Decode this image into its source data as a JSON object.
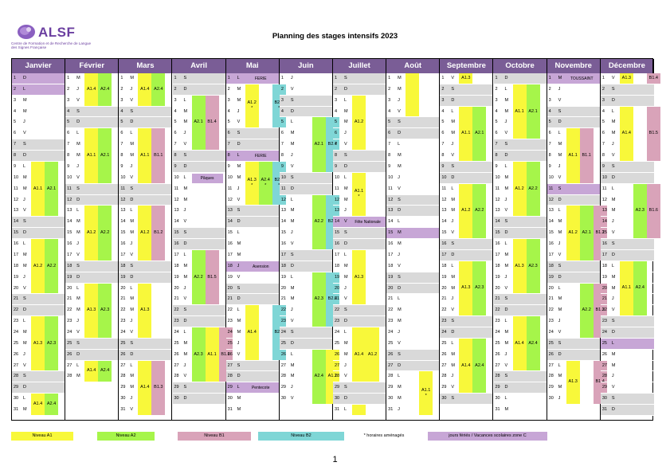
{
  "logo": {
    "brand": "ALSF",
    "subtitle": "Centre de Formation et de Recherche de Langue des Signes Française"
  },
  "title": "Planning des stages intensifs 2023",
  "months": [
    "Janvier",
    "Février",
    "Mars",
    "Avril",
    "Mai",
    "Juin",
    "Juillet",
    "Août",
    "Septembre",
    "Octobre",
    "Novembre",
    "Décembre"
  ],
  "days": [
    [
      "D",
      "L",
      "M",
      "M",
      "J",
      "V",
      "S",
      "D",
      "L",
      "M",
      "M",
      "J",
      "V",
      "S",
      "D",
      "L",
      "M",
      "M",
      "J",
      "V",
      "S",
      "D",
      "L",
      "M",
      "M",
      "J",
      "V",
      "S",
      "D",
      "L",
      "M"
    ],
    [
      "M",
      "J",
      "V",
      "S",
      "D",
      "L",
      "M",
      "M",
      "J",
      "V",
      "S",
      "D",
      "L",
      "M",
      "M",
      "J",
      "V",
      "S",
      "D",
      "L",
      "M",
      "M",
      "J",
      "V",
      "S",
      "D",
      "L",
      "M"
    ],
    [
      "M",
      "J",
      "V",
      "S",
      "D",
      "L",
      "M",
      "M",
      "J",
      "V",
      "S",
      "D",
      "L",
      "M",
      "M",
      "J",
      "V",
      "S",
      "D",
      "L",
      "M",
      "M",
      "J",
      "V",
      "S",
      "D",
      "L",
      "M",
      "M",
      "J",
      "V"
    ],
    [
      "S",
      "D",
      "L",
      "M",
      "M",
      "J",
      "V",
      "S",
      "D",
      "L",
      "M",
      "M",
      "J",
      "V",
      "S",
      "D",
      "L",
      "M",
      "M",
      "J",
      "V",
      "S",
      "D",
      "L",
      "M",
      "M",
      "J",
      "V",
      "S",
      "D"
    ],
    [
      "L",
      "M",
      "M",
      "J",
      "V",
      "S",
      "D",
      "L",
      "M",
      "M",
      "J",
      "V",
      "S",
      "D",
      "L",
      "M",
      "M",
      "J",
      "V",
      "S",
      "D",
      "L",
      "M",
      "M",
      "J",
      "V",
      "S",
      "D",
      "L",
      "M",
      "M"
    ],
    [
      "J",
      "V",
      "S",
      "D",
      "L",
      "M",
      "M",
      "J",
      "V",
      "S",
      "D",
      "L",
      "M",
      "M",
      "J",
      "V",
      "S",
      "D",
      "L",
      "M",
      "M",
      "J",
      "V",
      "S",
      "D",
      "L",
      "M",
      "M",
      "J",
      "V"
    ],
    [
      "S",
      "D",
      "L",
      "M",
      "M",
      "J",
      "V",
      "S",
      "D",
      "L",
      "M",
      "M",
      "J",
      "V",
      "S",
      "D",
      "L",
      "M",
      "M",
      "J",
      "V",
      "S",
      "D",
      "L",
      "M",
      "M",
      "J",
      "V",
      "S",
      "D",
      "L"
    ],
    [
      "M",
      "M",
      "J",
      "V",
      "S",
      "D",
      "L",
      "M",
      "M",
      "J",
      "V",
      "S",
      "D",
      "L",
      "M",
      "M",
      "J",
      "V",
      "S",
      "D",
      "L",
      "M",
      "M",
      "J",
      "V",
      "S",
      "D",
      "L",
      "M",
      "M",
      "J"
    ],
    [
      "V",
      "S",
      "D",
      "L",
      "M",
      "M",
      "J",
      "V",
      "S",
      "D",
      "L",
      "M",
      "M",
      "J",
      "V",
      "S",
      "D",
      "L",
      "M",
      "M",
      "J",
      "V",
      "S",
      "D",
      "L",
      "M",
      "M",
      "J",
      "V",
      "S"
    ],
    [
      "D",
      "L",
      "M",
      "M",
      "J",
      "V",
      "S",
      "D",
      "L",
      "M",
      "M",
      "J",
      "V",
      "S",
      "D",
      "L",
      "M",
      "M",
      "J",
      "V",
      "S",
      "D",
      "L",
      "M",
      "M",
      "J",
      "V",
      "S",
      "D",
      "L",
      "M"
    ],
    [
      "M",
      "J",
      "V",
      "S",
      "D",
      "L",
      "M",
      "M",
      "J",
      "V",
      "S",
      "D",
      "L",
      "M",
      "M",
      "J",
      "V",
      "S",
      "D",
      "L",
      "M",
      "M",
      "J",
      "V",
      "S",
      "D",
      "L",
      "M",
      "M",
      "J"
    ],
    [
      "V",
      "S",
      "D",
      "L",
      "M",
      "M",
      "J",
      "V",
      "S",
      "D",
      "L",
      "M",
      "M",
      "J",
      "V",
      "S",
      "D",
      "L",
      "M",
      "M",
      "J",
      "V",
      "S",
      "D",
      "L",
      "M",
      "M",
      "J",
      "V",
      "S",
      "D"
    ]
  ],
  "holidays": [
    [
      1,
      2
    ],
    [],
    [],
    [],
    [
      1,
      8,
      18,
      29
    ],
    [],
    [
      14
    ],
    [
      15
    ],
    [],
    [],
    [
      1,
      11
    ],
    [
      25
    ]
  ],
  "events": [
    {
      "label": "FERIE",
      "month": 4,
      "start": 1,
      "end": 1
    },
    {
      "label": "FERIE",
      "month": 4,
      "start": 8,
      "end": 8
    },
    {
      "label": "Asension",
      "month": 4,
      "start": 18,
      "end": 18
    },
    {
      "label": "Pentecote",
      "month": 4,
      "start": 29,
      "end": 29
    },
    {
      "label": "Pâques",
      "month": 3,
      "start": 10,
      "end": 10
    },
    {
      "label": "Fête Nationale",
      "month": 6,
      "start": 14,
      "end": 14
    },
    {
      "label": "TOUSSAINT",
      "month": 10,
      "start": 1,
      "end": 1
    }
  ],
  "blocks": [
    {
      "m": 0,
      "lane": 0,
      "s": 9,
      "e": 13,
      "c": "y",
      "t": "A1.1"
    },
    {
      "m": 0,
      "lane": 1,
      "s": 9,
      "e": 13,
      "c": "g",
      "t": "A2.1"
    },
    {
      "m": 0,
      "lane": 0,
      "s": 16,
      "e": 20,
      "c": "y",
      "t": "A1.2"
    },
    {
      "m": 0,
      "lane": 1,
      "s": 16,
      "e": 20,
      "c": "g",
      "t": "A2.2"
    },
    {
      "m": 0,
      "lane": 0,
      "s": 23,
      "e": 27,
      "c": "y",
      "t": "A1.3"
    },
    {
      "m": 0,
      "lane": 1,
      "s": 23,
      "e": 27,
      "c": "g",
      "t": "A2.3"
    },
    {
      "m": 0,
      "lane": 0,
      "s": 30,
      "e": 31,
      "c": "y",
      "t": "A1.4"
    },
    {
      "m": 0,
      "lane": 1,
      "s": 30,
      "e": 31,
      "c": "g",
      "t": "A2.4"
    },
    {
      "m": 1,
      "lane": 0,
      "s": 1,
      "e": 3,
      "c": "y",
      "t": "A1.4"
    },
    {
      "m": 1,
      "lane": 1,
      "s": 1,
      "e": 3,
      "c": "g",
      "t": "A2.4"
    },
    {
      "m": 1,
      "lane": 0,
      "s": 6,
      "e": 10,
      "c": "y",
      "t": "A1.1"
    },
    {
      "m": 1,
      "lane": 1,
      "s": 6,
      "e": 10,
      "c": "g",
      "t": "A2.1"
    },
    {
      "m": 1,
      "lane": 0,
      "s": 13,
      "e": 17,
      "c": "y",
      "t": "A1.2"
    },
    {
      "m": 1,
      "lane": 1,
      "s": 13,
      "e": 17,
      "c": "g",
      "t": "A2.2"
    },
    {
      "m": 1,
      "lane": 0,
      "s": 20,
      "e": 24,
      "c": "y",
      "t": "A1.3"
    },
    {
      "m": 1,
      "lane": 1,
      "s": 20,
      "e": 24,
      "c": "g",
      "t": "A2.3"
    },
    {
      "m": 1,
      "lane": 0,
      "s": 27,
      "e": 28,
      "c": "y",
      "t": "A1.4"
    },
    {
      "m": 1,
      "lane": 1,
      "s": 27,
      "e": 28,
      "c": "g",
      "t": "A2.4"
    },
    {
      "m": 2,
      "lane": 0,
      "s": 1,
      "e": 3,
      "c": "y",
      "t": "A1.4"
    },
    {
      "m": 2,
      "lane": 1,
      "s": 1,
      "e": 3,
      "c": "g",
      "t": "A2.4"
    },
    {
      "m": 2,
      "lane": 0,
      "s": 6,
      "e": 10,
      "c": "y",
      "t": "A1.1"
    },
    {
      "m": 2,
      "lane": 1,
      "s": 6,
      "e": 10,
      "c": "p",
      "t": "B1.1"
    },
    {
      "m": 2,
      "lane": 0,
      "s": 13,
      "e": 17,
      "c": "y",
      "t": "A1.2"
    },
    {
      "m": 2,
      "lane": 1,
      "s": 13,
      "e": 17,
      "c": "p",
      "t": "B1.2"
    },
    {
      "m": 2,
      "lane": 0,
      "s": 20,
      "e": 24,
      "c": "y",
      "t": "A1.3"
    },
    {
      "m": 2,
      "lane": 0,
      "s": 27,
      "e": 31,
      "c": "y",
      "t": "A1.4"
    },
    {
      "m": 2,
      "lane": 1,
      "s": 27,
      "e": 31,
      "c": "p",
      "t": "B1.3"
    },
    {
      "m": 3,
      "lane": 0,
      "s": 3,
      "e": 7,
      "c": "g",
      "t": "A2.1"
    },
    {
      "m": 3,
      "lane": 1,
      "s": 3,
      "e": 7,
      "c": "p",
      "t": "B1.4"
    },
    {
      "m": 3,
      "lane": 0,
      "s": 17,
      "e": 21,
      "c": "g",
      "t": "A2.2"
    },
    {
      "m": 3,
      "lane": 1,
      "s": 17,
      "e": 21,
      "c": "p",
      "t": "B1.5"
    },
    {
      "m": 3,
      "lane": 0,
      "s": 24,
      "e": 28,
      "c": "g",
      "t": "A2.3"
    },
    {
      "m": 3,
      "lane": 1,
      "s": 24,
      "e": 28,
      "c": "y",
      "t": "A1.1"
    },
    {
      "m": 3,
      "lane": 2,
      "s": 24,
      "e": 28,
      "c": "p",
      "t": "B1.6"
    },
    {
      "m": 4,
      "lane": 0,
      "s": 2,
      "e": 5,
      "c": "y",
      "t": "A1.2 *"
    },
    {
      "m": 4,
      "lane": 2,
      "s": 2,
      "e": 5,
      "c": "c",
      "t": "B2.1 *"
    },
    {
      "m": 4,
      "lane": 0,
      "s": 9,
      "e": 12,
      "c": "y",
      "t": "A1.3 *"
    },
    {
      "m": 4,
      "lane": 1,
      "s": 9,
      "e": 12,
      "c": "g",
      "t": "A2.4 *"
    },
    {
      "m": 4,
      "lane": 2,
      "s": 9,
      "e": 12,
      "c": "c",
      "t": "B2.2 *"
    },
    {
      "m": 4,
      "lane": 0,
      "s": 22,
      "e": 26,
      "c": "y",
      "t": "A1.4"
    },
    {
      "m": 4,
      "lane": 2,
      "s": 22,
      "e": 26,
      "c": "c",
      "t": "B2.3"
    },
    {
      "m": 5,
      "lane": 1,
      "s": 5,
      "e": 9,
      "c": "g",
      "t": "A2.1"
    },
    {
      "m": 5,
      "lane": 2,
      "s": 5,
      "e": 9,
      "c": "c",
      "t": "B2.4"
    },
    {
      "m": 5,
      "lane": 1,
      "s": 12,
      "e": 16,
      "c": "g",
      "t": "A2.2"
    },
    {
      "m": 5,
      "lane": 2,
      "s": 12,
      "e": 16,
      "c": "c",
      "t": "B2.5"
    },
    {
      "m": 5,
      "lane": 1,
      "s": 19,
      "e": 23,
      "c": "g",
      "t": "A2.3"
    },
    {
      "m": 5,
      "lane": 2,
      "s": 19,
      "e": 23,
      "c": "c",
      "t": "B2.6"
    },
    {
      "m": 5,
      "lane": 1,
      "s": 26,
      "e": 30,
      "c": "g",
      "t": "A2.4"
    },
    {
      "m": 5,
      "lane": 2,
      "s": 26,
      "e": 30,
      "c": "y",
      "t": "A1.1"
    },
    {
      "m": 6,
      "lane": 0,
      "s": 3,
      "e": 7,
      "c": "y",
      "t": "A1.2"
    },
    {
      "m": 6,
      "lane": 0,
      "s": 10,
      "e": 13,
      "c": "y",
      "t": "A1.1 *"
    },
    {
      "m": 6,
      "lane": 0,
      "s": 17,
      "e": 21,
      "c": "y",
      "t": "A1.3"
    },
    {
      "m": 6,
      "lane": 0,
      "s": 24,
      "e": 28,
      "c": "y",
      "t": "A1.4"
    },
    {
      "m": 6,
      "lane": 1,
      "s": 24,
      "e": 28,
      "c": "y",
      "t": "A1.2"
    },
    {
      "m": 6,
      "lane": 0,
      "s": 31,
      "e": 31,
      "c": "y",
      "t": ""
    },
    {
      "m": 7,
      "lane": 0,
      "s": 1,
      "e": 4,
      "c": "y",
      "t": ""
    },
    {
      "m": 7,
      "lane": 1,
      "s": 28,
      "e": 31,
      "c": "y",
      "t": "A1.1 *"
    },
    {
      "m": 8,
      "lane": 0,
      "s": 1,
      "e": 1,
      "c": "y",
      "t": "A1.3"
    },
    {
      "m": 8,
      "lane": 0,
      "s": 4,
      "e": 8,
      "c": "y",
      "t": "A1.1"
    },
    {
      "m": 8,
      "lane": 1,
      "s": 4,
      "e": 8,
      "c": "g",
      "t": "A2.1"
    },
    {
      "m": 8,
      "lane": 0,
      "s": 11,
      "e": 15,
      "c": "y",
      "t": "A1.2"
    },
    {
      "m": 8,
      "lane": 1,
      "s": 11,
      "e": 15,
      "c": "g",
      "t": "A2.2"
    },
    {
      "m": 8,
      "lane": 0,
      "s": 18,
      "e": 22,
      "c": "y",
      "t": "A1.3"
    },
    {
      "m": 8,
      "lane": 1,
      "s": 18,
      "e": 22,
      "c": "g",
      "t": "A2.3"
    },
    {
      "m": 8,
      "lane": 0,
      "s": 25,
      "e": 29,
      "c": "y",
      "t": "A1.4"
    },
    {
      "m": 8,
      "lane": 1,
      "s": 25,
      "e": 29,
      "c": "g",
      "t": "A2.4"
    },
    {
      "m": 9,
      "lane": 0,
      "s": 2,
      "e": 6,
      "c": "y",
      "t": "A1.1"
    },
    {
      "m": 9,
      "lane": 1,
      "s": 2,
      "e": 6,
      "c": "g",
      "t": "A2.1"
    },
    {
      "m": 9,
      "lane": 0,
      "s": 9,
      "e": 13,
      "c": "y",
      "t": "A1.2"
    },
    {
      "m": 9,
      "lane": 1,
      "s": 9,
      "e": 13,
      "c": "g",
      "t": "A2.2"
    },
    {
      "m": 9,
      "lane": 0,
      "s": 16,
      "e": 20,
      "c": "y",
      "t": "A1.3"
    },
    {
      "m": 9,
      "lane": 1,
      "s": 16,
      "e": 20,
      "c": "g",
      "t": "A2.3"
    },
    {
      "m": 9,
      "lane": 0,
      "s": 23,
      "e": 27,
      "c": "y",
      "t": "A1.4"
    },
    {
      "m": 9,
      "lane": 1,
      "s": 23,
      "e": 27,
      "c": "g",
      "t": "A2.4"
    },
    {
      "m": 10,
      "lane": 0,
      "s": 6,
      "e": 10,
      "c": "y",
      "t": "A1.1"
    },
    {
      "m": 10,
      "lane": 1,
      "s": 6,
      "e": 10,
      "c": "p",
      "t": "B1.1"
    },
    {
      "m": 10,
      "lane": 0,
      "s": 13,
      "e": 17,
      "c": "y",
      "t": "A1.2"
    },
    {
      "m": 10,
      "lane": 1,
      "s": 13,
      "e": 17,
      "c": "g",
      "t": "A2.1"
    },
    {
      "m": 10,
      "lane": 2,
      "s": 13,
      "e": 17,
      "c": "p",
      "t": "B1.2"
    },
    {
      "m": 10,
      "lane": 1,
      "s": 20,
      "e": 24,
      "c": "g",
      "t": "A2.2"
    },
    {
      "m": 10,
      "lane": 2,
      "s": 20,
      "e": 24,
      "c": "p",
      "t": "B1.3"
    },
    {
      "m": 10,
      "lane": 0,
      "s": 27,
      "e": 30,
      "c": "y",
      "t": "A1.3"
    },
    {
      "m": 10,
      "lane": 2,
      "s": 27,
      "e": 30,
      "c": "p",
      "t": "B1.4"
    },
    {
      "m": 11,
      "lane": 0,
      "s": 1,
      "e": 1,
      "c": "y",
      "t": "A1.3"
    },
    {
      "m": 11,
      "lane": 2,
      "s": 1,
      "e": 1,
      "c": "p",
      "t": "B1.4"
    },
    {
      "m": 11,
      "lane": 0,
      "s": 4,
      "e": 8,
      "c": "y",
      "t": "A1.4"
    },
    {
      "m": 11,
      "lane": 2,
      "s": 4,
      "e": 8,
      "c": "p",
      "t": "B1.5"
    },
    {
      "m": 11,
      "lane": 1,
      "s": 11,
      "e": 15,
      "c": "g",
      "t": "A2.3"
    },
    {
      "m": 11,
      "lane": 2,
      "s": 11,
      "e": 15,
      "c": "p",
      "t": "B1.6"
    },
    {
      "m": 11,
      "lane": 0,
      "s": 18,
      "e": 22,
      "c": "y",
      "t": "A1.1"
    },
    {
      "m": 11,
      "lane": 1,
      "s": 18,
      "e": 22,
      "c": "g",
      "t": "A2.4"
    }
  ],
  "legend": [
    {
      "label": "Niveau A1",
      "color": "#f8f83a"
    },
    {
      "label": "Niveau A2",
      "color": "#a6f54a"
    },
    {
      "label": "Niveau B1",
      "color": "#d9a3b9"
    },
    {
      "label": "Niveau B2",
      "color": "#7fd6d6"
    },
    {
      "label": "* horaires aménagés",
      "color": "#ffffff"
    },
    {
      "label": "jours fériés / Vacances scolaires zone C",
      "color": "#c7a6d6"
    }
  ],
  "page_number": "1"
}
